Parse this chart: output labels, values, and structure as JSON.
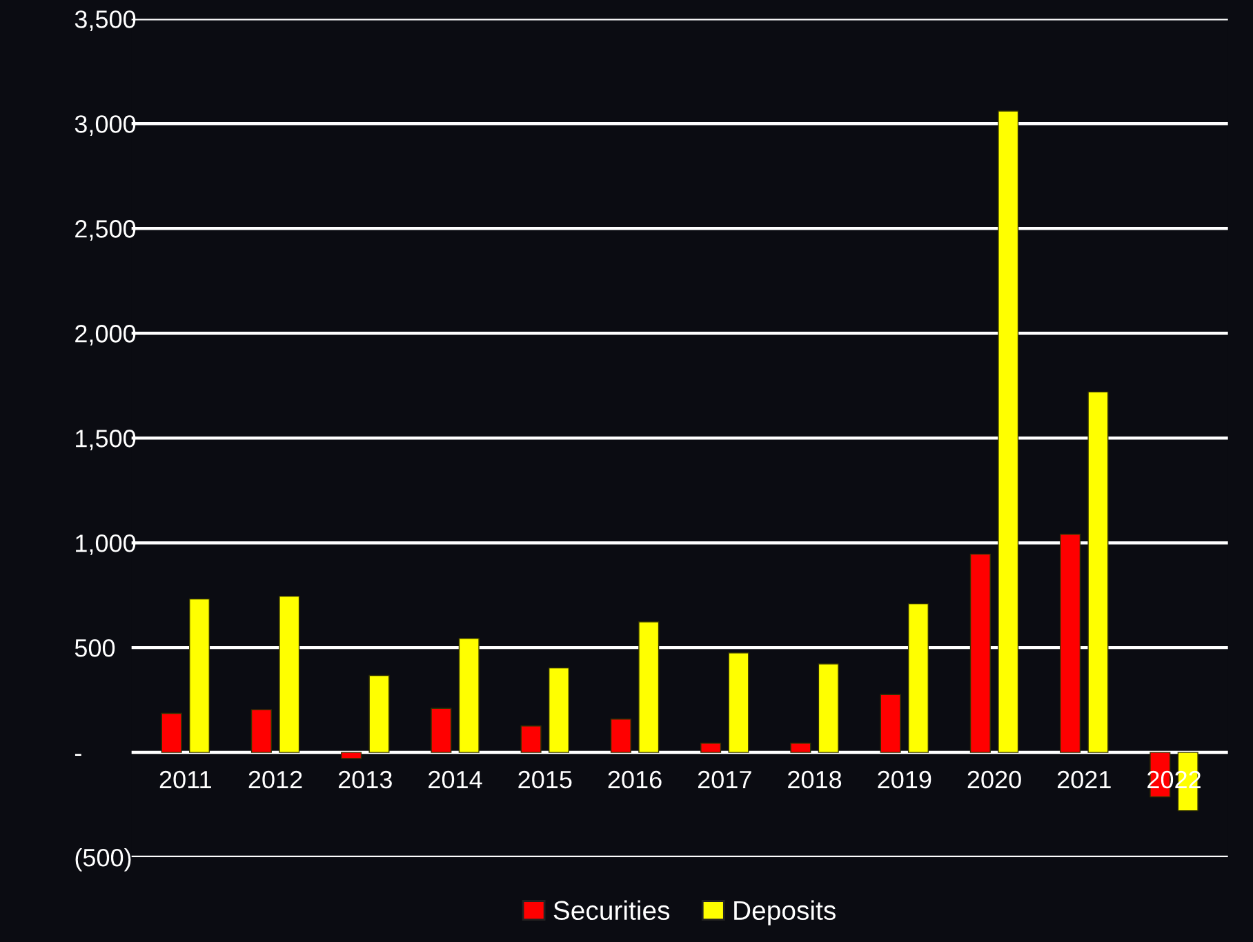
{
  "chart_data": {
    "type": "bar",
    "categories": [
      "2011",
      "2012",
      "2013",
      "2014",
      "2015",
      "2016",
      "2017",
      "2018",
      "2019",
      "2020",
      "2021",
      "2022"
    ],
    "series": [
      {
        "name": "Securities",
        "color": "#ff0000",
        "values": [
          186,
          204,
          -29,
          210,
          126,
          159,
          44,
          44,
          276,
          946,
          1041,
          -212
        ]
      },
      {
        "name": "Deposits",
        "color": "#ffff00",
        "values": [
          732,
          745,
          367,
          544,
          403,
          623,
          475,
          422,
          709,
          3060,
          1720,
          -278
        ]
      }
    ],
    "ylim": [
      -500,
      3500
    ],
    "yticks": [
      {
        "value": -500,
        "label": "(500)"
      },
      {
        "value": 0,
        "label": "-"
      },
      {
        "value": 500,
        "label": "500"
      },
      {
        "value": 1000,
        "label": "1,000"
      },
      {
        "value": 1500,
        "label": "1,500"
      },
      {
        "value": 2000,
        "label": "2,000"
      },
      {
        "value": 2500,
        "label": "2,500"
      },
      {
        "value": 3000,
        "label": "3,000"
      },
      {
        "value": 3500,
        "label": "3,500"
      }
    ],
    "grid": "y",
    "legend": "bottom"
  }
}
